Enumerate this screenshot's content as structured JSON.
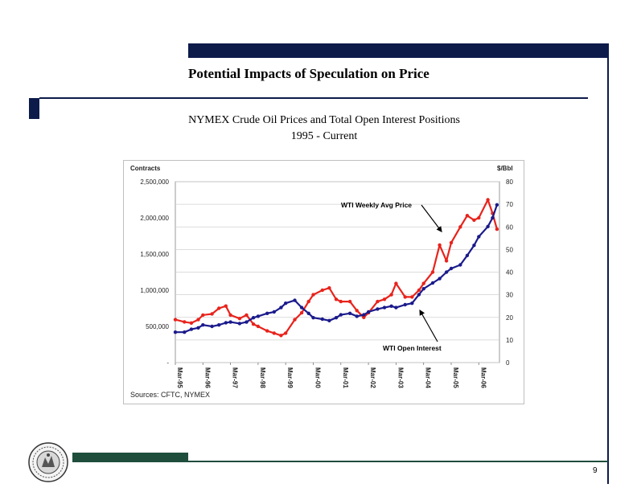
{
  "slide": {
    "title": "Potential Impacts of Speculation on Price",
    "subtitle_line1": "NYMEX Crude Oil Prices and Total Open Interest Positions",
    "subtitle_line2": "1995 - Current",
    "page_number": "9",
    "colors": {
      "navy": "#0d1b4b",
      "green": "#1f4e3d"
    }
  },
  "logo": {
    "icon": "seal-emblem-icon"
  },
  "chart_data": {
    "type": "line",
    "title": "",
    "sources": "Sources: CFTC, NYMEX",
    "left_axis_label": "Contracts",
    "right_axis_label": "$/Bbl",
    "left_ticks": [
      "2,500,000",
      "2,000,000",
      "1,500,000",
      "1,000,000",
      "500,000",
      "-"
    ],
    "right_ticks": [
      "80",
      "70",
      "60",
      "50",
      "40",
      "30",
      "20",
      "10",
      "0"
    ],
    "x_tick_labels": [
      "Mar-95",
      "Mar-96",
      "Mar-97",
      "Mar-98",
      "Mar-99",
      "Mar-00",
      "Mar-01",
      "Mar-02",
      "Mar-03",
      "Mar-04",
      "Mar-05",
      "Mar-06"
    ],
    "left_ylim": [
      0,
      2500000
    ],
    "right_ylim": [
      0,
      80
    ],
    "grid": "horizontal",
    "x": [
      1995.17,
      1995.5,
      1995.75,
      1996.0,
      1996.17,
      1996.5,
      1996.75,
      1997.0,
      1997.17,
      1997.5,
      1997.75,
      1998.0,
      1998.17,
      1998.5,
      1998.75,
      1999.0,
      1999.17,
      1999.5,
      1999.75,
      2000.0,
      2000.17,
      2000.5,
      2000.75,
      2001.0,
      2001.17,
      2001.5,
      2001.75,
      2002.0,
      2002.17,
      2002.5,
      2002.75,
      2003.0,
      2003.17,
      2003.5,
      2003.75,
      2004.0,
      2004.17,
      2004.5,
      2004.75,
      2005.0,
      2005.17,
      2005.5,
      2005.75,
      2006.0,
      2006.17,
      2006.5,
      2006.67,
      2006.83
    ],
    "series": [
      {
        "name": "WTI Weekly Avg Price",
        "axis": "right",
        "color": "#e8231c",
        "values": [
          19,
          18,
          17.5,
          19,
          21,
          21.5,
          24,
          25,
          21,
          19.5,
          21,
          17,
          16,
          14,
          13,
          12,
          13,
          19,
          22,
          27,
          30,
          32,
          33,
          28,
          27,
          27,
          23,
          20,
          22,
          27,
          28,
          30,
          35,
          29,
          29,
          32,
          35,
          40,
          52,
          45,
          53,
          60,
          65,
          63,
          64,
          72,
          66,
          59
        ]
      },
      {
        "name": "WTI Open Interest",
        "axis": "left",
        "color": "#1a1a8c",
        "values": [
          420000,
          420000,
          460000,
          480000,
          520000,
          500000,
          520000,
          550000,
          560000,
          540000,
          560000,
          620000,
          640000,
          680000,
          700000,
          760000,
          820000,
          860000,
          760000,
          680000,
          620000,
          600000,
          580000,
          620000,
          660000,
          680000,
          640000,
          660000,
          700000,
          740000,
          760000,
          780000,
          760000,
          800000,
          820000,
          940000,
          1020000,
          1100000,
          1160000,
          1250000,
          1300000,
          1350000,
          1480000,
          1620000,
          1740000,
          1880000,
          2000000,
          2180000
        ]
      }
    ],
    "annotations": [
      {
        "text": "WTI Weekly Avg Price",
        "points_to_series": 0
      },
      {
        "text": "WTI Open Interest",
        "points_to_series": 1
      }
    ]
  }
}
